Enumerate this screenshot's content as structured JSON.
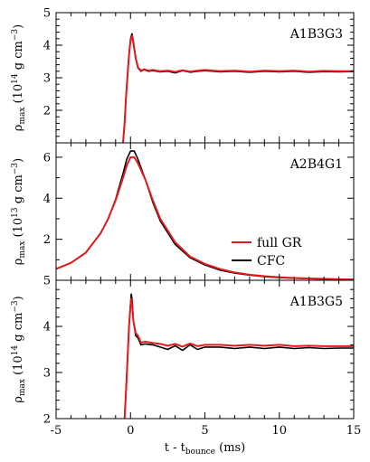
{
  "figure": {
    "xlabel_main": "t - t",
    "xlabel_sub": "bounce",
    "xlabel_unit": " (ms)"
  },
  "legend": {
    "items": [
      {
        "label": "full GR",
        "color": "#e31a1c"
      },
      {
        "label": "CFC",
        "color": "#000000"
      }
    ]
  },
  "chart_data": [
    {
      "type": "line",
      "panel_label": "A1B3G3",
      "ylabel_main": "ρ",
      "ylabel_sub": "max",
      "ylabel_pre": " (10",
      "ylabel_exp": "14",
      "ylabel_post": " g cm",
      "ylabel_exp2": "−3",
      "ylabel_close": ")",
      "xlim": [
        -5,
        15
      ],
      "ylim": [
        1.0,
        5.0
      ],
      "yticks": [
        2,
        3,
        4,
        5
      ],
      "xticks": [
        -5,
        0,
        5,
        10,
        15
      ],
      "series": [
        {
          "name": "CFC",
          "color": "#000000",
          "points": [
            [
              -0.5,
              1.0
            ],
            [
              -0.4,
              1.6
            ],
            [
              -0.3,
              2.4
            ],
            [
              -0.2,
              3.1
            ],
            [
              -0.1,
              3.7
            ],
            [
              0.0,
              4.2
            ],
            [
              0.1,
              4.35
            ],
            [
              0.2,
              4.1
            ],
            [
              0.35,
              3.6
            ],
            [
              0.5,
              3.3
            ],
            [
              0.7,
              3.2
            ],
            [
              0.9,
              3.25
            ],
            [
              1.2,
              3.2
            ],
            [
              1.5,
              3.22
            ],
            [
              2.0,
              3.18
            ],
            [
              2.5,
              3.2
            ],
            [
              3.0,
              3.15
            ],
            [
              3.5,
              3.22
            ],
            [
              4.0,
              3.17
            ],
            [
              4.5,
              3.2
            ],
            [
              5.0,
              3.22
            ],
            [
              6.0,
              3.18
            ],
            [
              7.0,
              3.2
            ],
            [
              8.0,
              3.17
            ],
            [
              9.0,
              3.2
            ],
            [
              10.0,
              3.18
            ],
            [
              11.0,
              3.2
            ],
            [
              12.0,
              3.17
            ],
            [
              13.0,
              3.19
            ],
            [
              14.0,
              3.18
            ],
            [
              15.0,
              3.19
            ]
          ]
        },
        {
          "name": "full GR",
          "color": "#e31a1c",
          "points": [
            [
              -0.5,
              1.0
            ],
            [
              -0.4,
              1.6
            ],
            [
              -0.3,
              2.4
            ],
            [
              -0.2,
              3.1
            ],
            [
              -0.1,
              3.7
            ],
            [
              0.0,
              4.15
            ],
            [
              0.1,
              4.28
            ],
            [
              0.2,
              4.05
            ],
            [
              0.35,
              3.6
            ],
            [
              0.5,
              3.32
            ],
            [
              0.7,
              3.22
            ],
            [
              0.9,
              3.26
            ],
            [
              1.2,
              3.22
            ],
            [
              1.5,
              3.24
            ],
            [
              2.0,
              3.2
            ],
            [
              2.5,
              3.22
            ],
            [
              3.0,
              3.18
            ],
            [
              3.5,
              3.23
            ],
            [
              4.0,
              3.19
            ],
            [
              4.5,
              3.22
            ],
            [
              5.0,
              3.24
            ],
            [
              6.0,
              3.2
            ],
            [
              7.0,
              3.22
            ],
            [
              8.0,
              3.19
            ],
            [
              9.0,
              3.22
            ],
            [
              10.0,
              3.2
            ],
            [
              11.0,
              3.22
            ],
            [
              12.0,
              3.19
            ],
            [
              13.0,
              3.21
            ],
            [
              14.0,
              3.2
            ],
            [
              15.0,
              3.2
            ]
          ]
        }
      ]
    },
    {
      "type": "line",
      "panel_label": "A2B4G1",
      "ylabel_main": "ρ",
      "ylabel_sub": "max",
      "ylabel_pre": " (10",
      "ylabel_exp": "13",
      "ylabel_post": " g cm",
      "ylabel_exp2": "−3",
      "ylabel_close": ")",
      "xlim": [
        -5,
        15
      ],
      "ylim": [
        0,
        6.7
      ],
      "yticks": [
        2,
        4,
        6
      ],
      "xticks": [
        -5,
        0,
        5,
        10,
        15
      ],
      "series": [
        {
          "name": "CFC",
          "color": "#000000",
          "points": [
            [
              -5,
              0.55
            ],
            [
              -4,
              0.85
            ],
            [
              -3,
              1.35
            ],
            [
              -2,
              2.3
            ],
            [
              -1.5,
              3.0
            ],
            [
              -1,
              3.95
            ],
            [
              -0.5,
              5.2
            ],
            [
              -0.25,
              5.9
            ],
            [
              0,
              6.3
            ],
            [
              0.25,
              6.3
            ],
            [
              0.5,
              5.9
            ],
            [
              1,
              4.9
            ],
            [
              1.5,
              3.8
            ],
            [
              2,
              2.9
            ],
            [
              3,
              1.75
            ],
            [
              4,
              1.1
            ],
            [
              5,
              0.75
            ],
            [
              6,
              0.5
            ],
            [
              7,
              0.35
            ],
            [
              8,
              0.25
            ],
            [
              9,
              0.18
            ],
            [
              10,
              0.13
            ],
            [
              11,
              0.1
            ],
            [
              12,
              0.08
            ],
            [
              13,
              0.06
            ],
            [
              14,
              0.05
            ],
            [
              15,
              0.04
            ]
          ]
        },
        {
          "name": "full GR",
          "color": "#e31a1c",
          "points": [
            [
              -5,
              0.55
            ],
            [
              -4,
              0.85
            ],
            [
              -3,
              1.35
            ],
            [
              -2,
              2.3
            ],
            [
              -1.5,
              3.0
            ],
            [
              -1,
              3.9
            ],
            [
              -0.5,
              5.0
            ],
            [
              -0.25,
              5.6
            ],
            [
              0,
              6.0
            ],
            [
              0.25,
              6.0
            ],
            [
              0.5,
              5.7
            ],
            [
              1,
              4.9
            ],
            [
              1.5,
              3.9
            ],
            [
              2,
              3.0
            ],
            [
              3,
              1.85
            ],
            [
              4,
              1.15
            ],
            [
              5,
              0.8
            ],
            [
              6,
              0.55
            ],
            [
              7,
              0.38
            ],
            [
              8,
              0.27
            ],
            [
              9,
              0.2
            ],
            [
              10,
              0.15
            ],
            [
              11,
              0.11
            ],
            [
              12,
              0.09
            ],
            [
              13,
              0.07
            ],
            [
              14,
              0.05
            ],
            [
              15,
              0.04
            ]
          ]
        }
      ]
    },
    {
      "type": "line",
      "panel_label": "A1B3G5",
      "ylabel_main": "ρ",
      "ylabel_sub": "max",
      "ylabel_pre": " (10",
      "ylabel_exp": "14",
      "ylabel_post": " g cm",
      "ylabel_exp2": "−3",
      "ylabel_close": ")",
      "xlim": [
        -5,
        15
      ],
      "ylim": [
        2.0,
        5.0
      ],
      "yticks": [
        2,
        3,
        4,
        5
      ],
      "xticks": [
        -5,
        0,
        5,
        10,
        15
      ],
      "series": [
        {
          "name": "CFC",
          "color": "#000000",
          "points": [
            [
              -0.4,
              2.0
            ],
            [
              -0.3,
              2.6
            ],
            [
              -0.2,
              3.3
            ],
            [
              -0.1,
              4.0
            ],
            [
              0.0,
              4.5
            ],
            [
              0.05,
              4.7
            ],
            [
              0.1,
              4.6
            ],
            [
              0.2,
              4.1
            ],
            [
              0.35,
              3.8
            ],
            [
              0.5,
              3.75
            ],
            [
              0.7,
              3.6
            ],
            [
              1.0,
              3.62
            ],
            [
              1.5,
              3.6
            ],
            [
              2.0,
              3.55
            ],
            [
              2.5,
              3.5
            ],
            [
              3.0,
              3.58
            ],
            [
              3.5,
              3.48
            ],
            [
              4.0,
              3.6
            ],
            [
              4.5,
              3.5
            ],
            [
              5.0,
              3.55
            ],
            [
              6.0,
              3.55
            ],
            [
              7.0,
              3.52
            ],
            [
              8.0,
              3.55
            ],
            [
              9.0,
              3.52
            ],
            [
              10.0,
              3.55
            ],
            [
              11.0,
              3.52
            ],
            [
              12.0,
              3.54
            ],
            [
              13.0,
              3.52
            ],
            [
              14.0,
              3.53
            ],
            [
              15.0,
              3.53
            ]
          ]
        },
        {
          "name": "full GR",
          "color": "#e31a1c",
          "points": [
            [
              -0.4,
              2.0
            ],
            [
              -0.3,
              2.6
            ],
            [
              -0.2,
              3.3
            ],
            [
              -0.1,
              4.0
            ],
            [
              0.0,
              4.45
            ],
            [
              0.05,
              4.6
            ],
            [
              0.1,
              4.5
            ],
            [
              0.2,
              4.1
            ],
            [
              0.35,
              3.85
            ],
            [
              0.5,
              3.8
            ],
            [
              0.7,
              3.65
            ],
            [
              1.0,
              3.67
            ],
            [
              1.5,
              3.64
            ],
            [
              2.0,
              3.62
            ],
            [
              2.5,
              3.58
            ],
            [
              3.0,
              3.62
            ],
            [
              3.5,
              3.56
            ],
            [
              4.0,
              3.63
            ],
            [
              4.5,
              3.57
            ],
            [
              5.0,
              3.6
            ],
            [
              6.0,
              3.6
            ],
            [
              7.0,
              3.58
            ],
            [
              8.0,
              3.6
            ],
            [
              9.0,
              3.58
            ],
            [
              10.0,
              3.6
            ],
            [
              11.0,
              3.57
            ],
            [
              12.0,
              3.58
            ],
            [
              13.0,
              3.57
            ],
            [
              14.0,
              3.57
            ],
            [
              15.0,
              3.57
            ]
          ]
        }
      ]
    }
  ]
}
